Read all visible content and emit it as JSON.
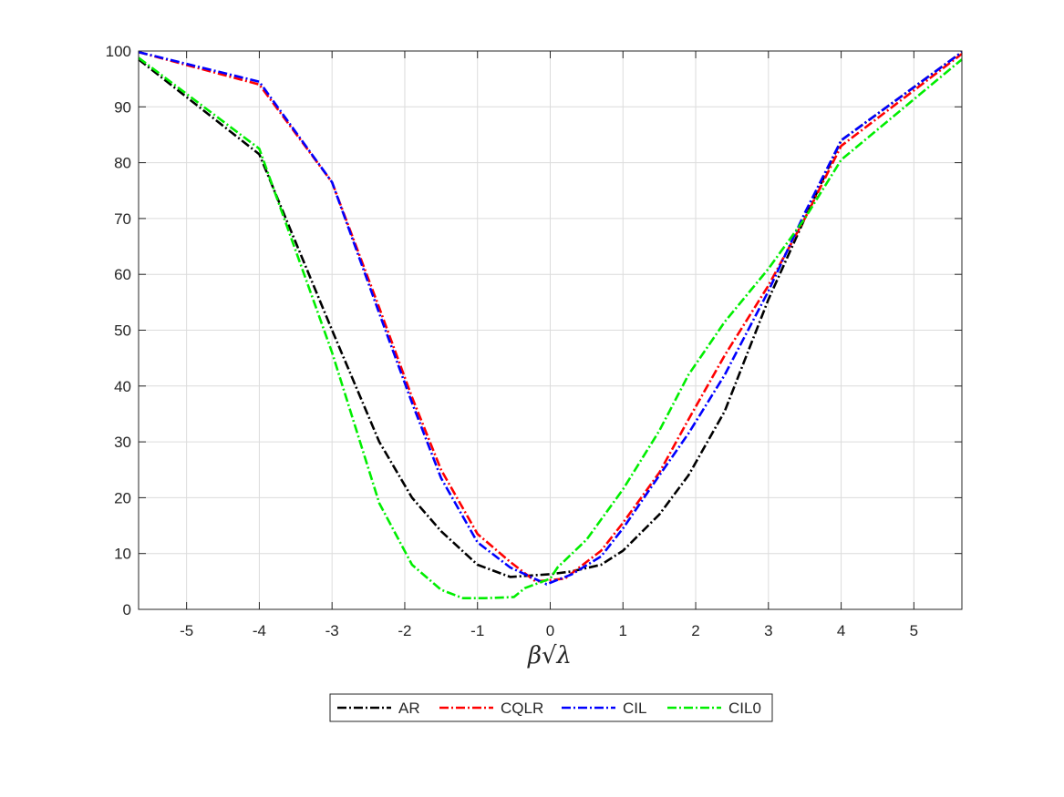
{
  "chart_data": {
    "type": "line",
    "title": "",
    "xlabel": "β√λ",
    "ylabel": "",
    "xlim": [
      -5.66,
      5.66
    ],
    "ylim": [
      0,
      100
    ],
    "xticks": [
      -5,
      -4,
      -3,
      -2,
      -1,
      0,
      1,
      2,
      3,
      4,
      5
    ],
    "yticks": [
      0,
      10,
      20,
      30,
      40,
      50,
      60,
      70,
      80,
      90,
      100
    ],
    "grid": true,
    "legend": {
      "placement": "bottom-outside",
      "orientation": "horizontal"
    },
    "series": [
      {
        "name": "AR",
        "color": "#000000",
        "x": [
          -5.66,
          -4,
          -3,
          -2.35,
          -1.9,
          -1.5,
          -1,
          -0.55,
          0,
          0.3,
          0.7,
          1,
          1.5,
          1.9,
          2.4,
          3,
          3.5,
          4,
          5.66
        ],
        "y": [
          98.5,
          81.5,
          50,
          30,
          20,
          14,
          8,
          5.8,
          6.3,
          6.8,
          8,
          10.5,
          17,
          24,
          35.5,
          55.5,
          70,
          84,
          99.8
        ]
      },
      {
        "name": "CQLR",
        "color": "#ff0000",
        "x": [
          -5.66,
          -4,
          -3,
          -2.35,
          -1.9,
          -1.5,
          -1,
          -0.55,
          -0.2,
          0.2,
          0.7,
          1,
          1.5,
          1.9,
          2.4,
          3,
          3.5,
          4,
          5.66
        ],
        "y": [
          99.8,
          94,
          76.5,
          54,
          38,
          25,
          13.5,
          8.5,
          5,
          5.5,
          10.5,
          15.5,
          24.5,
          34,
          45.5,
          58,
          70,
          83,
          99.5
        ]
      },
      {
        "name": "CIL",
        "color": "#0000ff",
        "x": [
          -5.66,
          -4,
          -3,
          -2.35,
          -1.9,
          -1.5,
          -1,
          -0.55,
          -0.05,
          0.3,
          0.7,
          1,
          1.5,
          1.9,
          2.4,
          3,
          3.5,
          4,
          5.66
        ],
        "y": [
          99.8,
          94.5,
          76.5,
          53,
          37,
          23.5,
          12,
          7.5,
          4.5,
          6.3,
          9.5,
          14.5,
          24,
          31.5,
          42,
          57,
          71,
          84,
          99.8
        ]
      },
      {
        "name": "CIL0",
        "color": "#00ee00",
        "x": [
          -5.66,
          -4,
          -3,
          -2.35,
          -1.9,
          -1.5,
          -1.2,
          -0.9,
          -0.5,
          -0.35,
          0,
          0.1,
          0.5,
          1,
          1.5,
          1.9,
          2.4,
          3,
          3.5,
          4,
          5.66
        ],
        "y": [
          98.8,
          82.5,
          46,
          19,
          8,
          3.5,
          2,
          2,
          2.2,
          3.8,
          5.5,
          7.5,
          12.5,
          21.5,
          32,
          42,
          51.5,
          61,
          70,
          80.5,
          98.5
        ]
      }
    ]
  }
}
